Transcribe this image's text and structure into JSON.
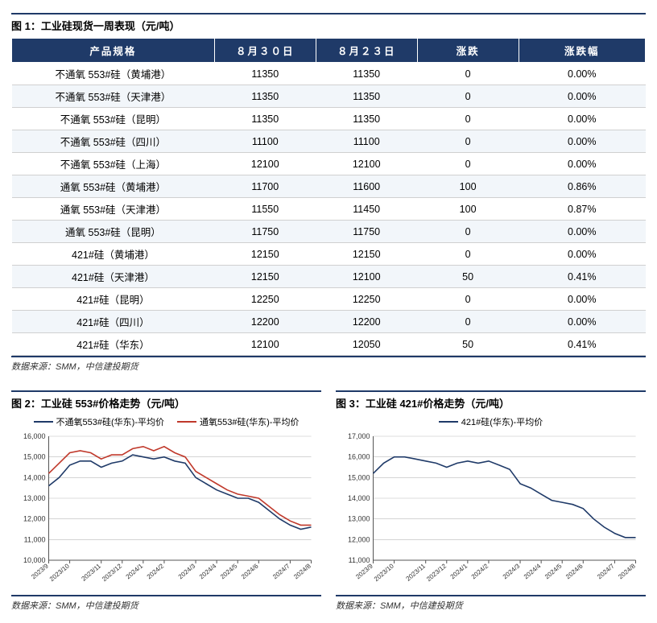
{
  "table": {
    "caption": "图 1：工业硅现货一周表现（元/吨）",
    "columns": [
      "产品规格",
      "８月３０日",
      "８月２３日",
      "涨跌",
      "涨跌幅"
    ],
    "rows": [
      [
        "不通氧 553#硅（黄埔港）",
        "11350",
        "11350",
        "0",
        "0.00%"
      ],
      [
        "不通氧 553#硅（天津港）",
        "11350",
        "11350",
        "0",
        "0.00%"
      ],
      [
        "不通氧 553#硅（昆明）",
        "11350",
        "11350",
        "0",
        "0.00%"
      ],
      [
        "不通氧 553#硅（四川）",
        "11100",
        "11100",
        "0",
        "0.00%"
      ],
      [
        "不通氧 553#硅（上海）",
        "12100",
        "12100",
        "0",
        "0.00%"
      ],
      [
        "通氧 553#硅（黄埔港）",
        "11700",
        "11600",
        "100",
        "0.86%"
      ],
      [
        "通氧 553#硅（天津港）",
        "11550",
        "11450",
        "100",
        "0.87%"
      ],
      [
        "通氧 553#硅（昆明）",
        "11750",
        "11750",
        "0",
        "0.00%"
      ],
      [
        "421#硅（黄埔港）",
        "12150",
        "12150",
        "0",
        "0.00%"
      ],
      [
        "421#硅（天津港）",
        "12150",
        "12100",
        "50",
        "0.41%"
      ],
      [
        "421#硅（昆明）",
        "12250",
        "12250",
        "0",
        "0.00%"
      ],
      [
        "421#硅（四川）",
        "12200",
        "12200",
        "0",
        "0.00%"
      ],
      [
        "421#硅（华东）",
        "12100",
        "12050",
        "50",
        "0.41%"
      ]
    ],
    "source": "数据来源：SMM，中信建投期货",
    "col_widths_pct": [
      32,
      16,
      16,
      16,
      20
    ],
    "header_bg": "#1f3a68",
    "header_fg": "#ffffff",
    "row_alt_bg": "#f2f6fa",
    "row_border": "#d0d0d0"
  },
  "chart1": {
    "title": "图 2：工业硅 553#价格走势（元/吨）",
    "type": "line",
    "x_labels": [
      "2023/9",
      "2023/10",
      "2023/11",
      "2023/12",
      "2024/1",
      "2024/2",
      "2024/3",
      "2024/4",
      "2024/5",
      "2024/6",
      "2024/7",
      "2024/8"
    ],
    "ylim": [
      10000,
      16000
    ],
    "ytick_step": 1000,
    "grid_color": "#bbbbbb",
    "axis_color": "#555555",
    "background": "#ffffff",
    "series": [
      {
        "name": "不通氧553#硅(华东)-平均价",
        "color": "#1f3a68",
        "values": [
          13600,
          14000,
          14600,
          14800,
          14800,
          14500,
          14700,
          14800,
          15100,
          15000,
          14900,
          15000,
          14800,
          14700,
          14000,
          13700,
          13400,
          13200,
          13000,
          13000,
          12800,
          12400,
          12000,
          11700,
          11500,
          11600
        ]
      },
      {
        "name": "通氧553#硅(华东)-平均价",
        "color": "#c0392b",
        "values": [
          14200,
          14700,
          15200,
          15300,
          15200,
          14900,
          15100,
          15100,
          15400,
          15500,
          15300,
          15500,
          15200,
          15000,
          14300,
          14000,
          13700,
          13400,
          13200,
          13100,
          13000,
          12600,
          12200,
          11900,
          11700,
          11700
        ]
      }
    ],
    "source": "数据来源：SMM，中信建投期货",
    "x_label_rotate": -40
  },
  "chart2": {
    "title": "图 3：工业硅 421#价格走势（元/吨）",
    "type": "line",
    "x_labels": [
      "2023/9",
      "2023/10",
      "2023/11",
      "2023/12",
      "2024/1",
      "2024/2",
      "2024/3",
      "2024/4",
      "2024/5",
      "2024/6",
      "2024/7",
      "2024/8"
    ],
    "ylim": [
      11000,
      17000
    ],
    "ytick_step": 1000,
    "grid_color": "#bbbbbb",
    "axis_color": "#555555",
    "background": "#ffffff",
    "series": [
      {
        "name": "421#硅(华东)-平均价",
        "color": "#1f3a68",
        "values": [
          15200,
          15700,
          16000,
          16000,
          15900,
          15800,
          15700,
          15500,
          15700,
          15800,
          15700,
          15800,
          15600,
          15400,
          14700,
          14500,
          14200,
          13900,
          13800,
          13700,
          13500,
          13000,
          12600,
          12300,
          12100,
          12100
        ]
      }
    ],
    "source": "数据来源：SMM，中信建投期货",
    "x_label_rotate": -40
  }
}
